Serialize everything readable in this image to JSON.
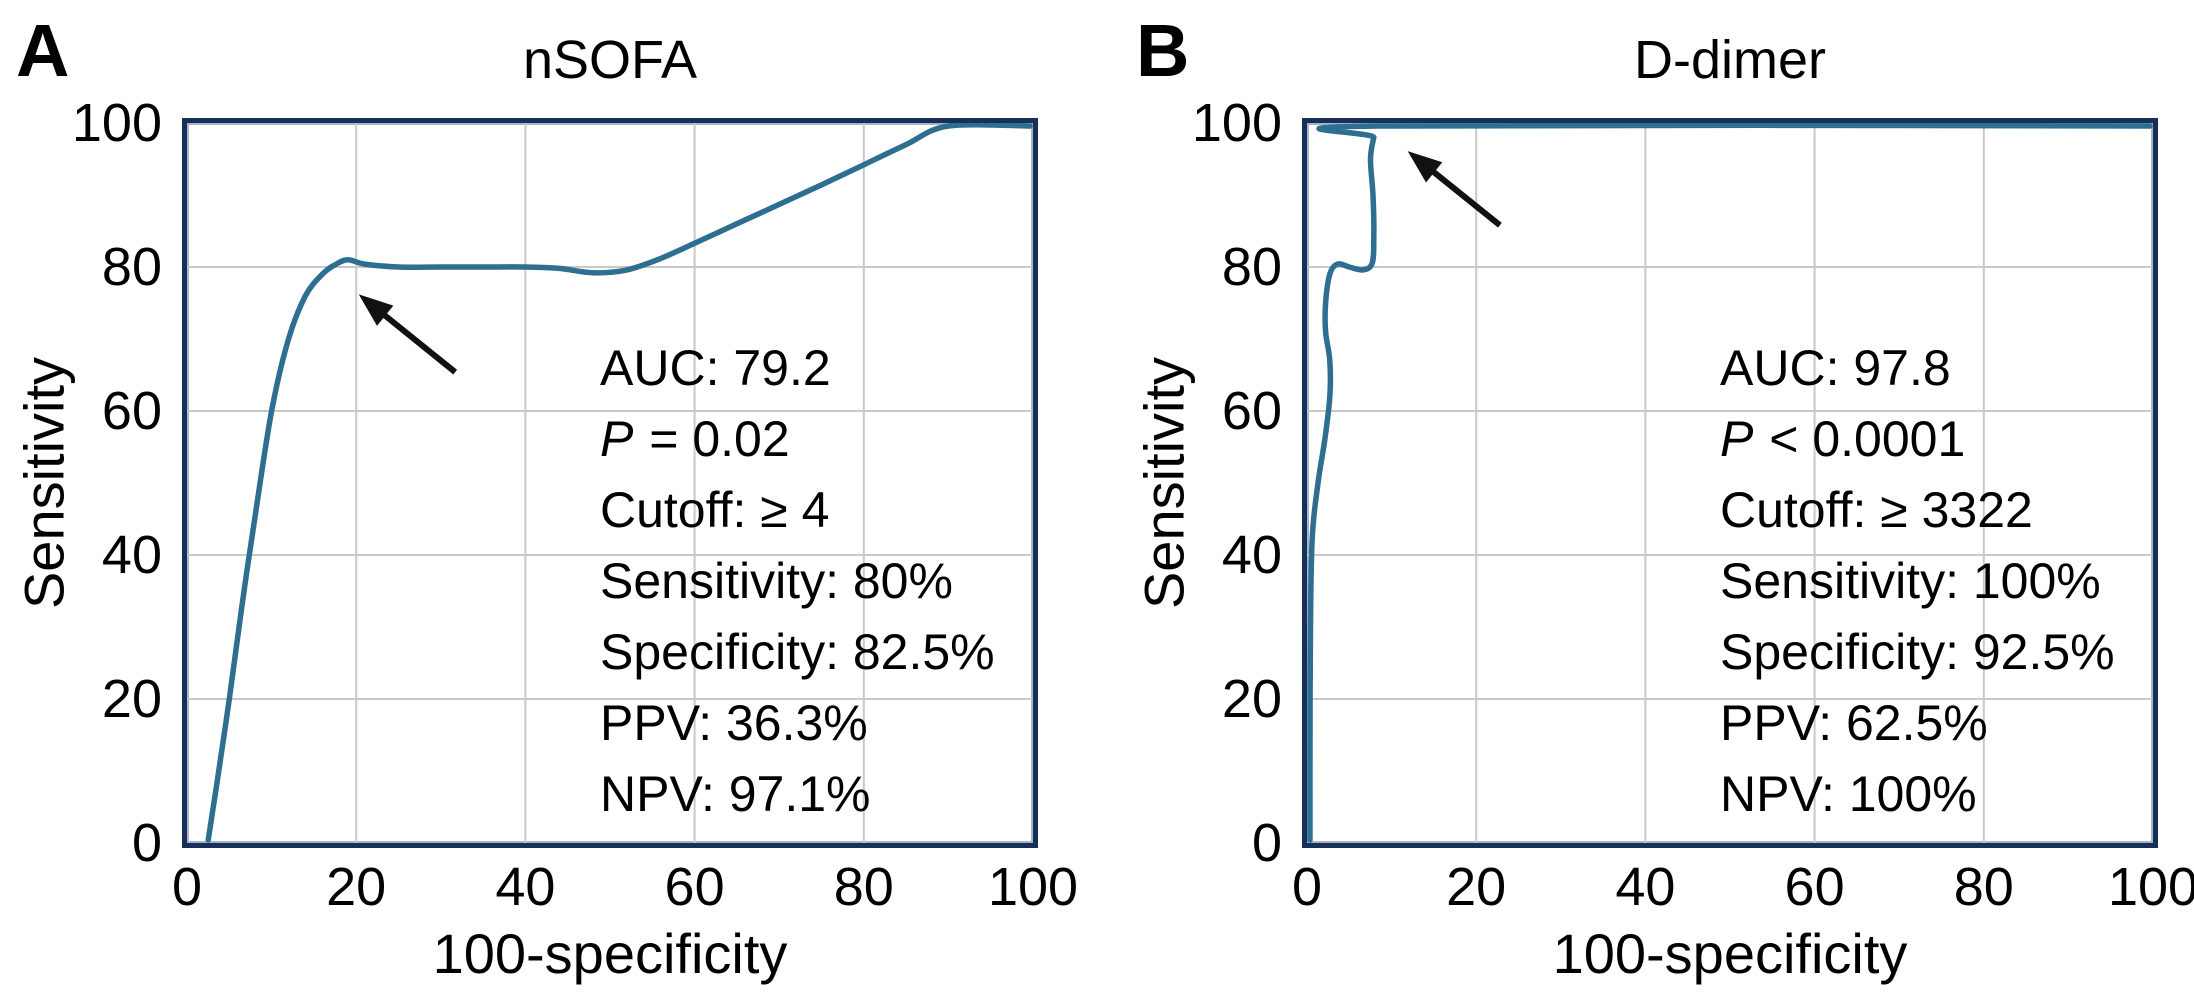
{
  "colors": {
    "background": "#ffffff",
    "curve": "#2d6e91",
    "frame": "#16305a",
    "frame_inner_line": "#a7b4c8",
    "gridline": "#c9c9c9",
    "text": "#000000",
    "arrow": "#111111"
  },
  "panels": [
    {
      "panel_label": "A",
      "title": "nSOFA",
      "x_axis_label": "100-specificity",
      "y_axis_label": "Sensitivity",
      "annotation_lines": [
        {
          "text": "AUC: 79.2"
        },
        {
          "italic_prefix": "P",
          "text": " = 0.02"
        },
        {
          "text": "Cutoff: ≥ 4"
        },
        {
          "text": "Sensitivity: 80%"
        },
        {
          "text": "Specificity: 82.5%"
        },
        {
          "text": "PPV: 36.3%"
        },
        {
          "text": "NPV: 97.1%"
        }
      ]
    },
    {
      "panel_label": "B",
      "title": "D-dimer",
      "x_axis_label": "100-specificity",
      "y_axis_label": "Sensitivity",
      "annotation_lines": [
        {
          "text": "AUC: 97.8"
        },
        {
          "italic_prefix": "P",
          "text": " < 0.0001"
        },
        {
          "text": "Cutoff: ≥ 3322"
        },
        {
          "text": "Sensitivity: 100%"
        },
        {
          "text": "Specificity: 92.5%"
        },
        {
          "text": "PPV: 62.5%"
        },
        {
          "text": "NPV: 100%"
        }
      ]
    }
  ],
  "chart_data": [
    {
      "type": "line",
      "title": "nSOFA",
      "xlabel": "100-specificity",
      "ylabel": "Sensitivity",
      "xlim": [
        0,
        100
      ],
      "ylim": [
        0,
        100
      ],
      "x_ticks": [
        0,
        20,
        40,
        60,
        80,
        100
      ],
      "y_ticks": [
        0,
        20,
        40,
        60,
        80,
        100
      ],
      "grid": true,
      "legend": false,
      "series": [
        {
          "name": "ROC curve (nSOFA)",
          "points": [
            [
              2.5,
              0
            ],
            [
              3.5,
              8
            ],
            [
              5,
              20
            ],
            [
              6.5,
              33
            ],
            [
              8,
              45
            ],
            [
              10,
              60
            ],
            [
              12,
              70
            ],
            [
              14,
              76
            ],
            [
              16,
              79
            ],
            [
              17.5,
              80.3
            ],
            [
              19,
              81
            ],
            [
              21,
              80.4
            ],
            [
              25,
              80
            ],
            [
              30,
              80
            ],
            [
              35,
              80
            ],
            [
              40,
              80
            ],
            [
              44,
              79.8
            ],
            [
              48,
              79.2
            ],
            [
              52,
              79.6
            ],
            [
              56,
              81.2
            ],
            [
              60,
              83.3
            ],
            [
              65,
              86
            ],
            [
              70,
              88.7
            ],
            [
              75,
              91.4
            ],
            [
              80,
              94.2
            ],
            [
              85,
              97
            ],
            [
              90,
              100
            ],
            [
              100,
              100
            ]
          ]
        }
      ],
      "stats": {
        "auc": 79.2,
        "p": "= 0.02",
        "cutoff": "≥ 4",
        "sensitivity_pct": 80,
        "specificity_pct": 82.5,
        "ppv_pct": 36.3,
        "npv_pct": 97.1
      },
      "arrow": {
        "tail": [
          31.7,
          65.4
        ],
        "head": [
          20.3,
          76.2
        ],
        "points_to": "cutoff point on ROC curve"
      }
    },
    {
      "type": "line",
      "title": "D-dimer",
      "xlabel": "100-specificity",
      "ylabel": "Sensitivity",
      "xlim": [
        0,
        100
      ],
      "ylim": [
        0,
        100
      ],
      "x_ticks": [
        0,
        20,
        40,
        60,
        80,
        100
      ],
      "y_ticks": [
        0,
        20,
        40,
        60,
        80,
        100
      ],
      "grid": true,
      "legend": false,
      "series": [
        {
          "name": "ROC curve (D-dimer)",
          "points": [
            [
              0,
              0
            ],
            [
              0.2,
              12
            ],
            [
              0.4,
              28
            ],
            [
              0.6,
              42
            ],
            [
              1.3,
              50
            ],
            [
              2.1,
              56
            ],
            [
              2.7,
              62
            ],
            [
              2.7,
              67
            ],
            [
              2.2,
              71
            ],
            [
              2.2,
              75
            ],
            [
              2.7,
              79
            ],
            [
              3.6,
              80.4
            ],
            [
              5,
              80
            ],
            [
              6.6,
              79.6
            ],
            [
              7.7,
              80.5
            ],
            [
              7.9,
              84
            ],
            [
              7.8,
              90
            ],
            [
              7.5,
              95
            ],
            [
              7.9,
              98
            ],
            [
              8.3,
              100
            ],
            [
              100,
              100
            ]
          ]
        }
      ],
      "stats": {
        "auc": 97.8,
        "p": "< 0.0001",
        "cutoff": "≥ 3322",
        "sensitivity_pct": 100,
        "specificity_pct": 92.5,
        "ppv_pct": 62.5,
        "npv_pct": 100
      },
      "arrow": {
        "tail": [
          22.8,
          85.8
        ],
        "head": [
          11.9,
          96.1
        ],
        "points_to": "cutoff point on ROC curve"
      }
    }
  ]
}
